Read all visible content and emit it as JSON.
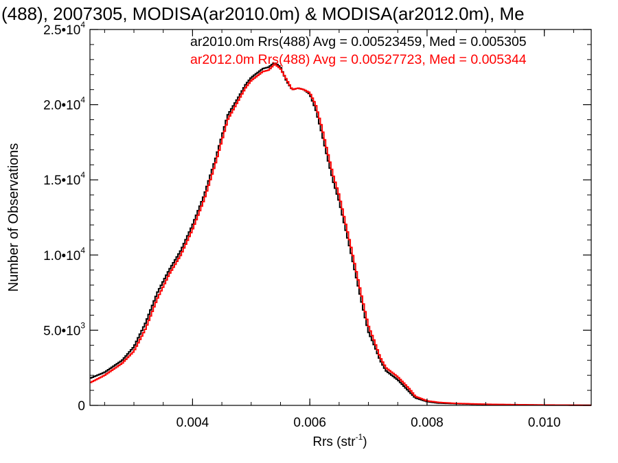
{
  "chart_data": {
    "type": "line",
    "title": "(488), 2007305, MODISA(ar2010.0m) & MODISA(ar2012.0m), Me",
    "xlabel": "Rrs (str",
    "xlabel_sup": "-1",
    "xlabel_close": ")",
    "ylabel": "Number of Observations",
    "xlim": [
      0.00225,
      0.0108
    ],
    "ylim": [
      0,
      25000
    ],
    "xticks": [
      {
        "value": 0.004,
        "label": "0.004"
      },
      {
        "value": 0.006,
        "label": "0.006"
      },
      {
        "value": 0.008,
        "label": "0.008"
      },
      {
        "value": 0.01,
        "label": "0.010"
      }
    ],
    "yticks": [
      {
        "value": 0,
        "mant": "0",
        "exp": ""
      },
      {
        "value": 5000,
        "mant": "5.0•10",
        "exp": "3"
      },
      {
        "value": 10000,
        "mant": "1.0•10",
        "exp": "4"
      },
      {
        "value": 15000,
        "mant": "1.5•10",
        "exp": "4"
      },
      {
        "value": 20000,
        "mant": "2.0•10",
        "exp": "4"
      },
      {
        "value": 25000,
        "mant": "2.5•10",
        "exp": "4"
      }
    ],
    "x_minor_step": 0.0005,
    "y_minor_step": 1000,
    "step_plot": true,
    "legend_position": "top-right",
    "series": [
      {
        "name": "ar2010.0m Rrs(488) Avg = 0.00523459, Med = 0.005305",
        "color": "#000000",
        "x": [
          0.00225,
          0.0025,
          0.0028,
          0.003,
          0.0032,
          0.0034,
          0.0036,
          0.0038,
          0.004,
          0.0042,
          0.0044,
          0.0046,
          0.0048,
          0.0049,
          0.005,
          0.0051,
          0.0052,
          0.0053,
          0.0054,
          0.0055,
          0.0056,
          0.0057,
          0.0058,
          0.0059,
          0.006,
          0.0061,
          0.0062,
          0.0063,
          0.0064,
          0.0065,
          0.0066,
          0.0067,
          0.0068,
          0.0069,
          0.007,
          0.0071,
          0.0072,
          0.0073,
          0.0074,
          0.0075,
          0.0076,
          0.0077,
          0.0078,
          0.008,
          0.0082,
          0.0085,
          0.0088,
          0.0091,
          0.0095,
          0.01,
          0.0108
        ],
        "y": [
          1800,
          2200,
          3000,
          3900,
          5500,
          7500,
          9000,
          10300,
          12000,
          14000,
          16500,
          19300,
          20600,
          21300,
          21800,
          22100,
          22400,
          22500,
          22800,
          22500,
          21600,
          21000,
          21100,
          21000,
          20700,
          19700,
          18200,
          16500,
          14900,
          13600,
          11900,
          10200,
          8400,
          6600,
          4900,
          4000,
          3000,
          2300,
          2000,
          1700,
          1300,
          900,
          500,
          250,
          150,
          110,
          80,
          60,
          40,
          20,
          10
        ]
      },
      {
        "name": "ar2012.0m Rrs(488) Avg = 0.00527723, Med = 0.005344",
        "color": "#ff0000",
        "x": [
          0.00225,
          0.0025,
          0.0028,
          0.003,
          0.0032,
          0.0034,
          0.0036,
          0.0038,
          0.004,
          0.0042,
          0.0044,
          0.0046,
          0.0048,
          0.0049,
          0.005,
          0.0051,
          0.0052,
          0.0053,
          0.0054,
          0.0055,
          0.0056,
          0.0057,
          0.0058,
          0.0059,
          0.006,
          0.0061,
          0.0062,
          0.0063,
          0.0064,
          0.0065,
          0.0066,
          0.0067,
          0.0068,
          0.0069,
          0.007,
          0.0071,
          0.0072,
          0.0073,
          0.0074,
          0.0075,
          0.0076,
          0.0077,
          0.0078,
          0.008,
          0.0082,
          0.0085,
          0.0088,
          0.0091,
          0.0095,
          0.01,
          0.0108
        ],
        "y": [
          1500,
          2000,
          2800,
          3600,
          5100,
          7100,
          8700,
          10000,
          11700,
          13700,
          16200,
          19000,
          20400,
          21100,
          21600,
          21900,
          22200,
          22300,
          22700,
          22400,
          21700,
          21000,
          21100,
          21000,
          20800,
          20000,
          18600,
          16900,
          15300,
          14000,
          12300,
          10600,
          8800,
          7000,
          5300,
          4300,
          3200,
          2500,
          2200,
          1900,
          1500,
          1100,
          600,
          300,
          200,
          130,
          100,
          70,
          50,
          30,
          10
        ]
      }
    ]
  }
}
